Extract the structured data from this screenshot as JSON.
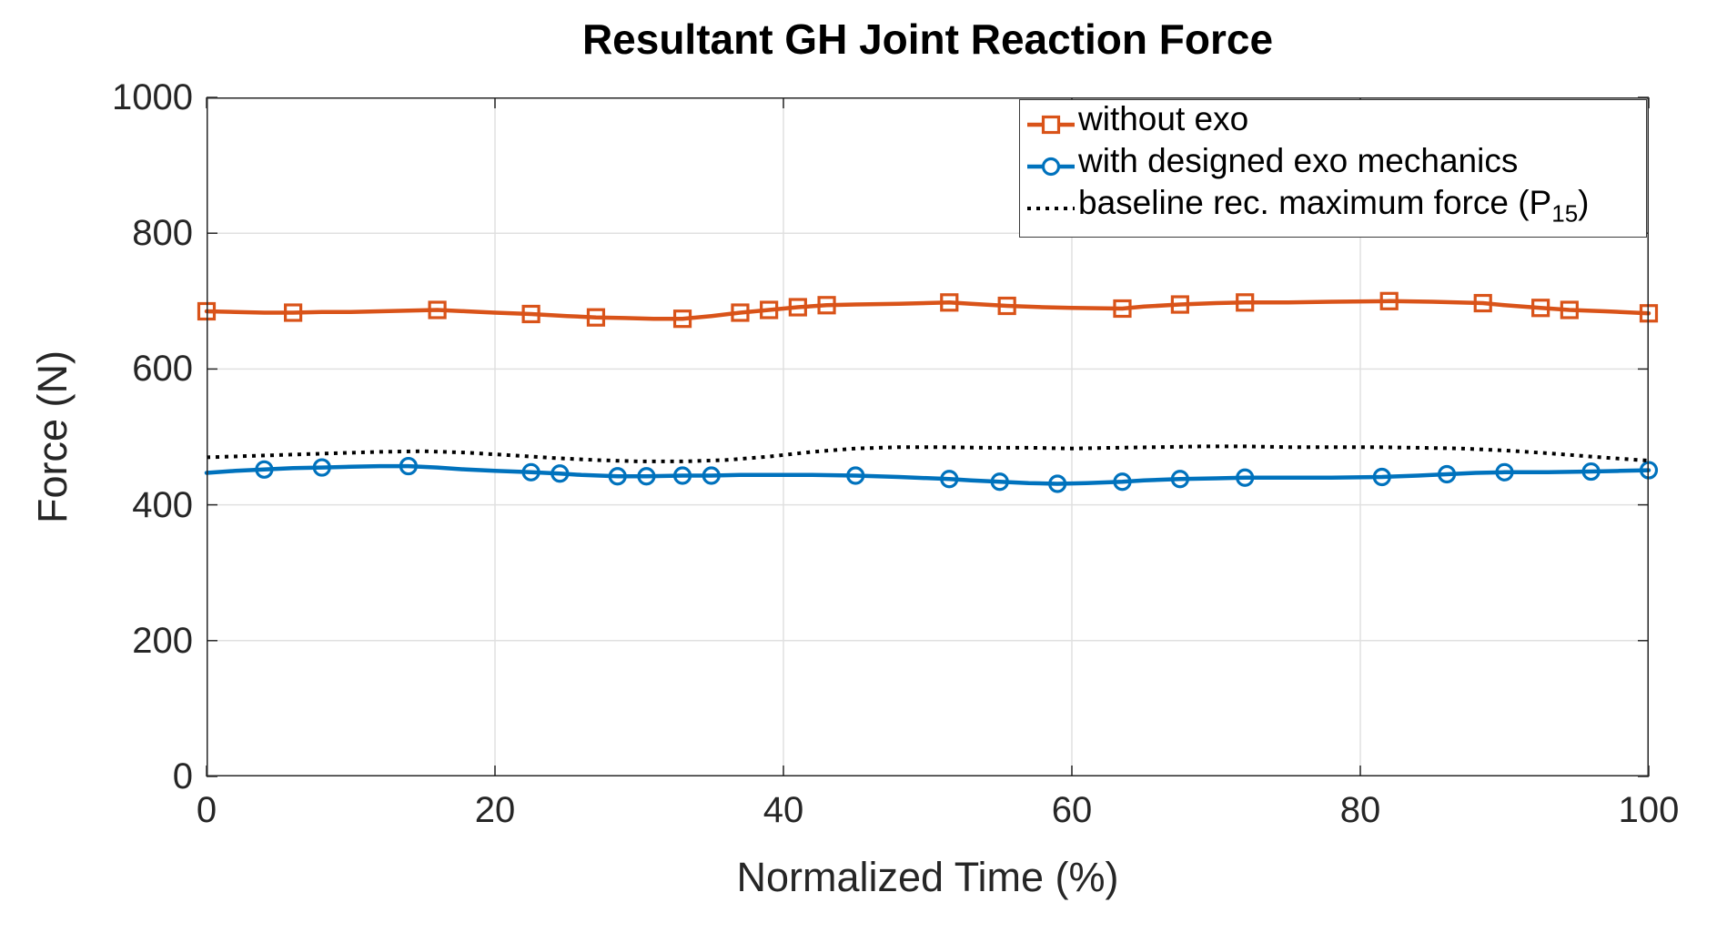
{
  "figure": {
    "title": "Resultant GH Joint Reaction Force",
    "x_label": "Normalized Time (%)",
    "y_label": "Force (N)"
  },
  "legend": {
    "items": [
      {
        "label": "without exo",
        "sub": "",
        "after": ""
      },
      {
        "label": "with designed exo mechanics",
        "sub": "",
        "after": ""
      },
      {
        "label": "baseline rec. maximum force (P",
        "sub": "15",
        "after": ")"
      }
    ]
  },
  "chart_data": {
    "type": "line",
    "title": "Resultant GH Joint Reaction Force",
    "xlabel": "Normalized Time (%)",
    "ylabel": "Force (N)",
    "xlim": [
      0,
      100
    ],
    "ylim": [
      0,
      1000
    ],
    "xticks": [
      0,
      20,
      40,
      60,
      80,
      100
    ],
    "yticks": [
      0,
      200,
      400,
      600,
      800,
      1000
    ],
    "grid": true,
    "legend_position": "top-right",
    "colors": {
      "axis": "#262626",
      "grid": "#e0e0e0",
      "background": "#ffffff",
      "text": "#262626"
    },
    "series": [
      {
        "name": "without exo",
        "color": "#D95319",
        "line_style": "solid",
        "line_width": 4.5,
        "marker": "square",
        "marker_t": [
          0,
          6,
          16,
          22.5,
          27,
          33,
          37,
          39,
          41,
          43,
          51.5,
          55.5,
          63.5,
          67.5,
          72,
          82,
          88.5,
          92.5,
          94.5,
          100
        ],
        "points": [
          [
            0,
            685
          ],
          [
            2,
            684
          ],
          [
            4,
            683
          ],
          [
            6,
            683
          ],
          [
            8,
            684
          ],
          [
            10,
            684
          ],
          [
            12,
            685
          ],
          [
            14,
            686
          ],
          [
            16,
            687
          ],
          [
            18,
            685
          ],
          [
            20,
            683
          ],
          [
            22.5,
            681
          ],
          [
            25,
            678
          ],
          [
            27,
            676
          ],
          [
            29,
            675
          ],
          [
            31,
            674
          ],
          [
            33,
            674
          ],
          [
            35,
            678
          ],
          [
            37,
            683
          ],
          [
            39,
            687
          ],
          [
            41,
            691
          ],
          [
            43,
            694
          ],
          [
            45,
            695
          ],
          [
            48,
            696
          ],
          [
            51.5,
            698
          ],
          [
            53,
            696
          ],
          [
            55.5,
            693
          ],
          [
            58,
            691
          ],
          [
            60,
            690
          ],
          [
            63.5,
            689
          ],
          [
            65,
            692
          ],
          [
            67.5,
            695
          ],
          [
            70,
            697
          ],
          [
            72,
            698
          ],
          [
            75,
            698
          ],
          [
            78,
            699
          ],
          [
            82,
            700
          ],
          [
            85,
            699
          ],
          [
            88.5,
            697
          ],
          [
            90,
            694
          ],
          [
            92.5,
            690
          ],
          [
            94.5,
            687
          ],
          [
            97,
            685
          ],
          [
            100,
            682
          ]
        ]
      },
      {
        "name": "with designed exo mechanics",
        "color": "#0072BD",
        "line_style": "solid",
        "line_width": 4.5,
        "marker": "circle",
        "marker_t": [
          4,
          8,
          14,
          22.5,
          24.5,
          28.5,
          30.5,
          33,
          35,
          45,
          51.5,
          55,
          59,
          63.5,
          67.5,
          72,
          81.5,
          86,
          90,
          96,
          100
        ],
        "points": [
          [
            0,
            447
          ],
          [
            2,
            450
          ],
          [
            4,
            452
          ],
          [
            6,
            454
          ],
          [
            8,
            455
          ],
          [
            10,
            456
          ],
          [
            12,
            457
          ],
          [
            14,
            457
          ],
          [
            16,
            455
          ],
          [
            18,
            452
          ],
          [
            20,
            450
          ],
          [
            22.5,
            448
          ],
          [
            24.5,
            446
          ],
          [
            26,
            444
          ],
          [
            28.5,
            442
          ],
          [
            30.5,
            442
          ],
          [
            33,
            443
          ],
          [
            35,
            443
          ],
          [
            37,
            444
          ],
          [
            40,
            444
          ],
          [
            42,
            444
          ],
          [
            45,
            443
          ],
          [
            48,
            441
          ],
          [
            51.5,
            438
          ],
          [
            53,
            436
          ],
          [
            55,
            434
          ],
          [
            57,
            432
          ],
          [
            59,
            431
          ],
          [
            61,
            432
          ],
          [
            63.5,
            434
          ],
          [
            65,
            436
          ],
          [
            67.5,
            438
          ],
          [
            70,
            439
          ],
          [
            72,
            440
          ],
          [
            75,
            440
          ],
          [
            78,
            440
          ],
          [
            81.5,
            441
          ],
          [
            84,
            443
          ],
          [
            86,
            445
          ],
          [
            88,
            447
          ],
          [
            90,
            448
          ],
          [
            93,
            448
          ],
          [
            96,
            449
          ],
          [
            98,
            450
          ],
          [
            100,
            451
          ]
        ]
      },
      {
        "name": "baseline rec. maximum force (P15)",
        "color": "#000000",
        "line_style": "dotted",
        "line_width": 4,
        "marker": "none",
        "marker_t": [],
        "points": [
          [
            0,
            470
          ],
          [
            3,
            472
          ],
          [
            6,
            474
          ],
          [
            9,
            476
          ],
          [
            12,
            478
          ],
          [
            15,
            479
          ],
          [
            18,
            477
          ],
          [
            21,
            473
          ],
          [
            24,
            469
          ],
          [
            27,
            466
          ],
          [
            30,
            464
          ],
          [
            33,
            464
          ],
          [
            36,
            466
          ],
          [
            39,
            471
          ],
          [
            42,
            478
          ],
          [
            45,
            483
          ],
          [
            48,
            485
          ],
          [
            51,
            485
          ],
          [
            54,
            484
          ],
          [
            57,
            484
          ],
          [
            60,
            483
          ],
          [
            63,
            484
          ],
          [
            66,
            485
          ],
          [
            69,
            486
          ],
          [
            72,
            486
          ],
          [
            75,
            485
          ],
          [
            78,
            485
          ],
          [
            81,
            485
          ],
          [
            84,
            484
          ],
          [
            87,
            483
          ],
          [
            90,
            480
          ],
          [
            93,
            476
          ],
          [
            96,
            471
          ],
          [
            98,
            468
          ],
          [
            100,
            465
          ]
        ]
      }
    ]
  }
}
